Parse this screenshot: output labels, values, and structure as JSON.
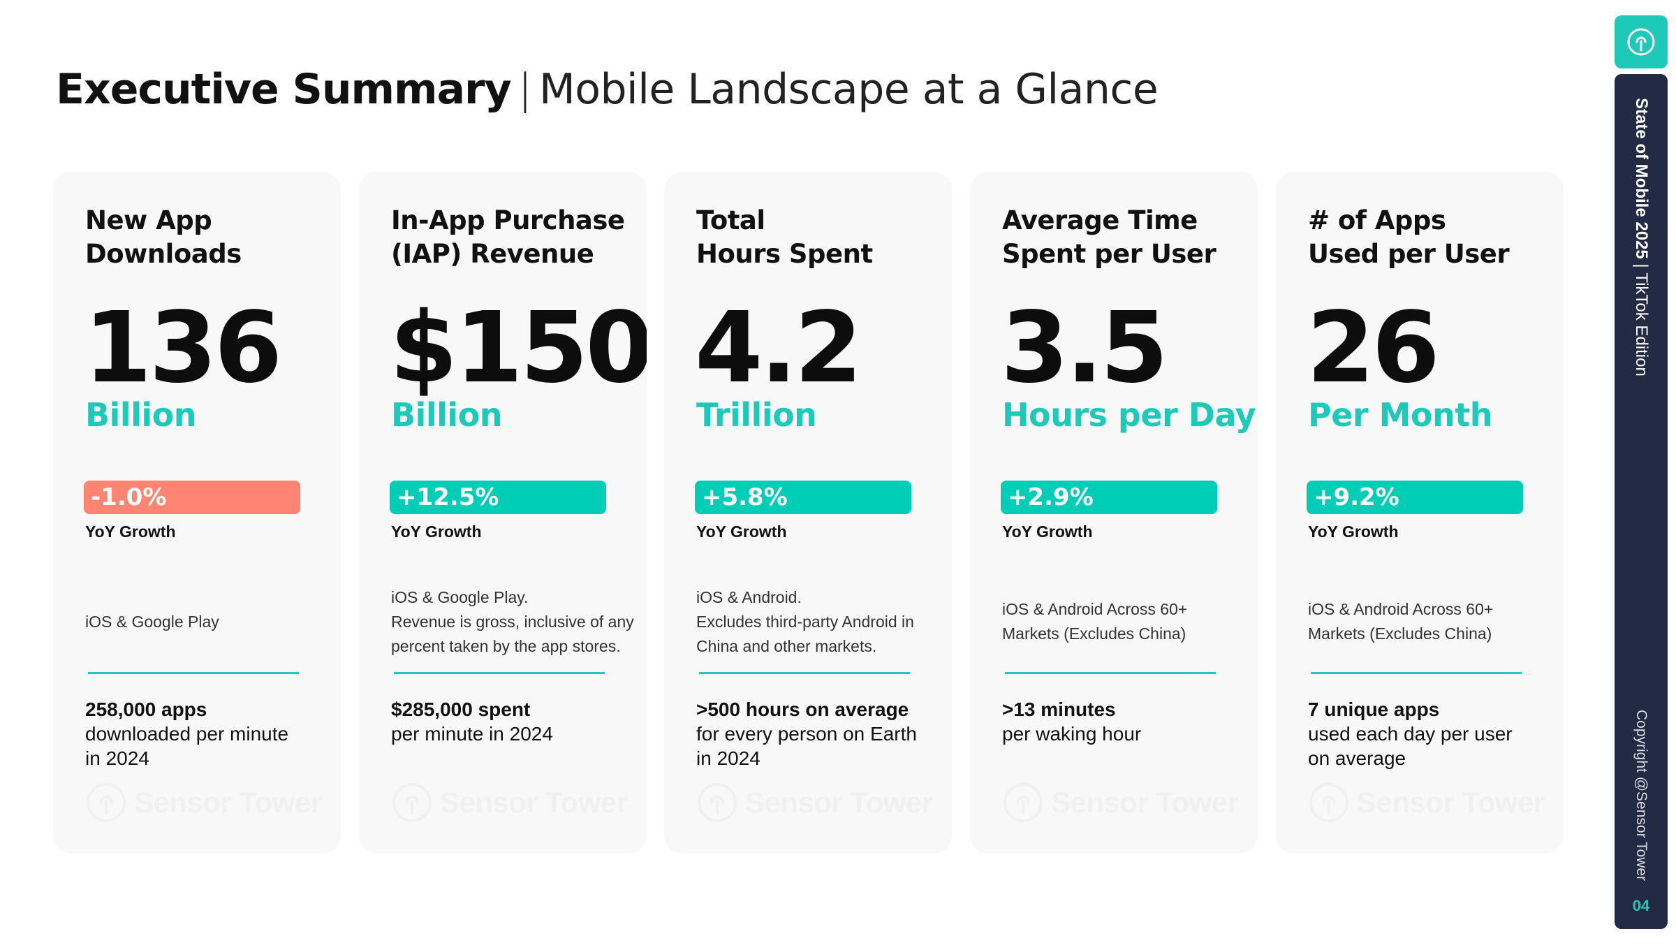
{
  "header": {
    "title_bold": "Executive Summary",
    "separator": "|",
    "title_light": "Mobile Landscape at a Glance"
  },
  "growth_label": "YoY Growth",
  "watermark": "Sensor Tower",
  "colors": {
    "accent": "#1ec9b9",
    "positive": "#00cdb5",
    "negative": "#ff8572",
    "sidebar": "#232a44",
    "card_bg": "#f8f8f8"
  },
  "cards": [
    {
      "title": "New App\nDownloads",
      "metric": "136",
      "unit": "Billion",
      "growth": "-1.0%",
      "growth_direction": "negative",
      "note": "iOS & Google Play",
      "stat_bold": "258,000 apps",
      "stat_rest": "downloaded per minute\nin 2024"
    },
    {
      "title": "In-App Purchase\n(IAP) Revenue",
      "metric": "$150",
      "unit": "Billion",
      "growth": "+12.5%",
      "growth_direction": "positive",
      "note": "iOS & Google Play.\nRevenue is gross, inclusive of any percent taken by the app stores.",
      "stat_bold": "$285,000 spent",
      "stat_rest": "per minute in 2024"
    },
    {
      "title": "Total\nHours Spent",
      "metric": "4.2",
      "unit": "Trillion",
      "growth": "+5.8%",
      "growth_direction": "positive",
      "note": "iOS & Android.\nExcludes third-party Android in China and other markets.",
      "stat_bold": ">500 hours on average",
      "stat_rest": "for every person on Earth\nin 2024"
    },
    {
      "title": "Average Time\nSpent per User",
      "metric": "3.5",
      "unit": "Hours per Day",
      "growth": "+2.9%",
      "growth_direction": "positive",
      "note": "iOS & Android Across 60+ Markets (Excludes China)",
      "stat_bold": ">13 minutes",
      "stat_rest": "per waking hour"
    },
    {
      "title": "# of Apps\nUsed per User",
      "metric": "26",
      "unit": "Per Month",
      "growth": "+9.2%",
      "growth_direction": "positive",
      "note": "iOS & Android Across 60+ Markets (Excludes China)",
      "stat_bold": "7 unique apps",
      "stat_rest": "used each day per user\non average"
    }
  ],
  "sidebar": {
    "report_title": "State of Mobile 2025",
    "divider": "|",
    "edition": "TikTok Edition",
    "copyright": "Copyright @Sensor Tower",
    "page_number": "04",
    "logo_icon": "sensor-tower-logo-icon"
  }
}
